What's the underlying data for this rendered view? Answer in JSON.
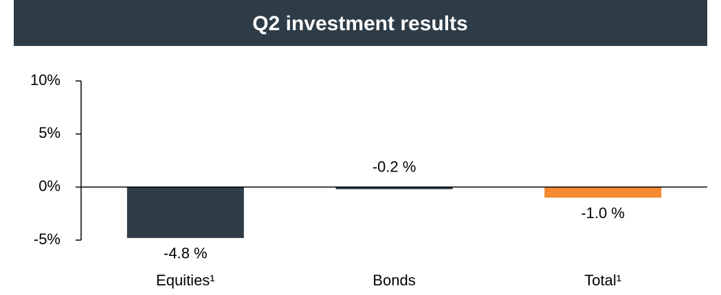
{
  "chart_data": {
    "type": "bar",
    "title": "Q2 investment results",
    "categories": [
      "Equities¹",
      "Bonds",
      "Total¹"
    ],
    "values": [
      -4.8,
      -0.2,
      -1.0
    ],
    "value_labels": [
      "-4.8 %",
      "-0.2 %",
      "-1.0 %"
    ],
    "colors": [
      "#2e3c47",
      "#2e3c47",
      "#f58a33"
    ],
    "ylim": [
      -5,
      10
    ],
    "yticks": [
      {
        "value": -5,
        "label": "-5%"
      },
      {
        "value": 0,
        "label": "0%"
      },
      {
        "value": 5,
        "label": "5%"
      },
      {
        "value": 10,
        "label": "10%"
      }
    ]
  }
}
